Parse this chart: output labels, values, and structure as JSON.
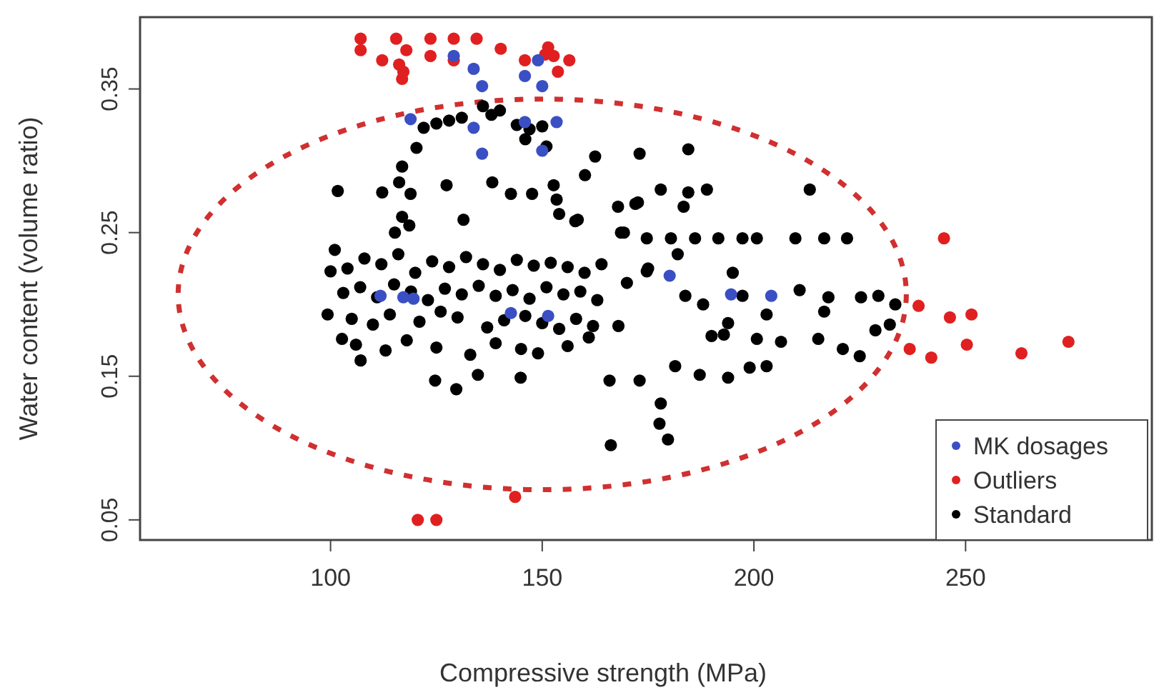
{
  "chart_data": {
    "type": "scatter",
    "xlabel": "Compressive strength (MPa)",
    "ylabel": "Water content (volume ratio)",
    "xlim": [
      55,
      294
    ],
    "ylim": [
      0.036,
      0.4
    ],
    "xticks": [
      100,
      150,
      200,
      250
    ],
    "yticks": [
      0.05,
      0.15,
      0.25,
      0.35
    ],
    "grid": false,
    "legend": "bottom right",
    "marker": "circle",
    "series": [
      {
        "name": "MK dosages",
        "color": "#3a4fc4",
        "x": [
          129.1,
          133.8,
          135.8,
          118.9,
          133.8,
          135.8,
          145.9,
          149.0,
          150.0,
          145.9,
          153.4,
          150.0,
          111.8,
          117.2,
          119.6,
          142.6,
          151.4,
          180.1,
          194.6,
          204.1
        ],
        "values": [
          0.373,
          0.364,
          0.352,
          0.329,
          0.323,
          0.305,
          0.359,
          0.37,
          0.352,
          0.327,
          0.327,
          0.307,
          0.206,
          0.205,
          0.204,
          0.194,
          0.192,
          0.22,
          0.207,
          0.206
        ]
      },
      {
        "name": "Outliers",
        "color": "#e02020",
        "x": [
          107.1,
          107.1,
          115.5,
          112.2,
          117.9,
          116.2,
          117.2,
          116.9,
          123.6,
          123.6,
          129.1,
          129.1,
          134.5,
          140.2,
          145.9,
          151.4,
          152.7,
          153.7,
          156.4,
          150.7,
          120.6,
          125.0,
          143.6,
          244.9,
          238.9,
          246.3,
          251.4,
          250.3,
          236.8,
          241.9,
          263.2,
          274.3
        ],
        "values": [
          0.385,
          0.377,
          0.385,
          0.37,
          0.377,
          0.367,
          0.362,
          0.357,
          0.385,
          0.373,
          0.385,
          0.37,
          0.385,
          0.378,
          0.37,
          0.379,
          0.373,
          0.362,
          0.37,
          0.374,
          0.05,
          0.05,
          0.066,
          0.246,
          0.199,
          0.191,
          0.193,
          0.172,
          0.169,
          0.163,
          0.166,
          0.174
        ]
      },
      {
        "name": "Standard",
        "color": "#000000",
        "x": [
          122,
          125,
          128,
          131,
          136,
          138,
          140,
          144,
          147,
          150,
          146,
          151,
          120.3,
          116.9,
          101.7,
          112.2,
          116.2,
          118.9,
          127.4,
          138.2,
          142.6,
          147.6,
          152.7,
          153.4,
          160.1,
          162.5,
          173,
          158.4,
          154,
          131.4,
          116.9,
          118.6,
          115.2,
          167.9,
          172,
          169.3,
          184.5,
          178,
          172.6,
          184.5,
          188.9,
          183.4,
          213.2,
          174.7,
          180.4,
          186.1,
          191.6,
          197.3,
          200.7,
          209.8,
          216.6,
          222.0,
          174.7,
          183.8,
          197.3,
          210.8,
          217.6,
          225.3,
          229.4,
          233.4,
          216.6,
          203.0,
          193.9,
          232.1,
          228.7,
          192.9,
          200.7,
          206.4,
          215.2,
          221.0,
          225,
          181.4,
          187.2,
          193.9,
          199.0,
          203.0,
          165.9,
          173.0,
          178,
          177.7,
          179.7,
          166.2,
          107.1,
          124.7,
          129.7,
          134.8,
          144.9,
          101,
          100,
          99.3,
          102.7,
          157.8,
          168.6,
          104,
          108,
          112,
          116,
          120,
          124,
          128,
          132,
          136,
          140,
          144,
          148,
          152,
          156,
          160,
          164,
          103,
          107,
          111,
          115,
          119,
          123,
          127,
          131,
          135,
          139,
          143,
          147,
          151,
          155,
          159,
          163,
          105,
          110,
          114,
          121,
          126,
          130,
          137,
          141,
          146,
          150,
          154,
          158,
          162,
          106,
          113,
          118,
          125,
          133,
          139,
          145,
          149,
          156,
          161,
          170,
          175,
          168,
          182,
          188,
          195,
          190
        ],
        "values": [
          0.323,
          0.326,
          0.328,
          0.33,
          0.338,
          0.332,
          0.335,
          0.325,
          0.322,
          0.324,
          0.315,
          0.31,
          0.309,
          0.296,
          0.279,
          0.278,
          0.285,
          0.277,
          0.283,
          0.285,
          0.277,
          0.277,
          0.283,
          0.273,
          0.29,
          0.303,
          0.305,
          0.259,
          0.263,
          0.259,
          0.261,
          0.255,
          0.25,
          0.268,
          0.27,
          0.25,
          0.308,
          0.28,
          0.271,
          0.278,
          0.28,
          0.268,
          0.28,
          0.246,
          0.246,
          0.246,
          0.246,
          0.246,
          0.246,
          0.246,
          0.246,
          0.246,
          0.223,
          0.206,
          0.206,
          0.21,
          0.205,
          0.205,
          0.206,
          0.2,
          0.195,
          0.193,
          0.187,
          0.186,
          0.182,
          0.179,
          0.176,
          0.174,
          0.176,
          0.169,
          0.164,
          0.157,
          0.151,
          0.149,
          0.156,
          0.157,
          0.147,
          0.147,
          0.131,
          0.117,
          0.106,
          0.102,
          0.161,
          0.147,
          0.141,
          0.151,
          0.149,
          0.238,
          0.223,
          0.193,
          0.176,
          0.258,
          0.25,
          0.225,
          0.232,
          0.228,
          0.235,
          0.222,
          0.23,
          0.226,
          0.233,
          0.228,
          0.224,
          0.231,
          0.227,
          0.229,
          0.226,
          0.222,
          0.228,
          0.208,
          0.212,
          0.205,
          0.214,
          0.209,
          0.203,
          0.211,
          0.207,
          0.213,
          0.206,
          0.21,
          0.204,
          0.212,
          0.207,
          0.209,
          0.203,
          0.19,
          0.186,
          0.193,
          0.188,
          0.195,
          0.191,
          0.184,
          0.189,
          0.192,
          0.187,
          0.183,
          0.19,
          0.185,
          0.172,
          0.168,
          0.175,
          0.17,
          0.165,
          0.173,
          0.169,
          0.166,
          0.171,
          0.177,
          0.215,
          0.225,
          0.185,
          0.235,
          0.2,
          0.222,
          0.178
        ]
      }
    ]
  }
}
